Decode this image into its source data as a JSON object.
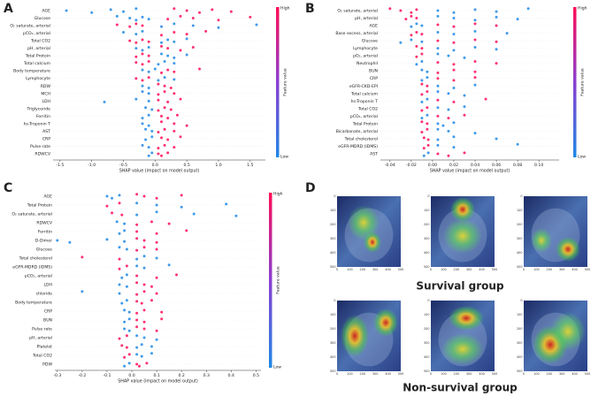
{
  "chart_data": [
    {
      "type": "beeswarm",
      "panel_label": "A",
      "features": [
        "AGE",
        "Glucose",
        "O₂ saturate, arterial",
        "pCO₂, arterial",
        "Total CO2",
        "pH, arterial",
        "Total Protein",
        "Total calcium",
        "Body temperature",
        "Lymphocyte",
        "RDW",
        "MCH",
        "LDH",
        "Triglyceride",
        "Ferritin",
        "hs-Troponin T",
        "AST",
        "CRP",
        "Pulse rate",
        "RDWCV"
      ],
      "high_values": [
        [
          0.3,
          0.5,
          0.7,
          0.9,
          1.2
        ],
        [
          0.2,
          0.4,
          0.6,
          1.0,
          1.5
        ],
        [
          -0.6,
          -0.4,
          -0.3,
          -0.2
        ],
        [
          0.1,
          0.3,
          0.5,
          0.8
        ],
        [
          -0.4,
          -0.3,
          -0.2,
          -0.1
        ],
        [
          0.1,
          0.2,
          0.4,
          0.6
        ],
        [
          -0.3,
          -0.2,
          -0.1
        ],
        [
          -0.3,
          -0.2,
          -0.1
        ],
        [
          0.1,
          0.2,
          0.3,
          0.7
        ],
        [
          -0.3,
          -0.2,
          -0.1
        ],
        [
          0.05,
          0.15,
          0.25
        ],
        [
          0.05,
          0.15,
          0.3
        ],
        [
          0.05,
          0.2,
          0.4
        ],
        [
          0.05,
          0.15,
          0.25
        ],
        [
          0.1,
          0.2,
          0.35
        ],
        [
          0.1,
          0.3,
          0.5
        ],
        [
          0.05,
          0.15,
          0.3
        ],
        [
          0.1,
          0.2,
          0.4
        ],
        [
          0.05,
          0.15,
          0.3
        ],
        [
          0.05,
          0.1,
          0.2
        ]
      ],
      "low_values": [
        [
          -1.4,
          -1.0,
          -0.7,
          -0.5,
          -0.3
        ],
        [
          -0.6,
          -0.4,
          -0.3,
          -0.2,
          -0.1
        ],
        [
          0.1,
          0.3,
          0.6,
          1.0,
          1.6
        ],
        [
          -0.5,
          -0.3,
          -0.2
        ],
        [
          0.1,
          0.2,
          0.3,
          0.5
        ],
        [
          -0.3,
          -0.2,
          -0.1
        ],
        [
          0.1,
          0.2,
          0.3,
          0.5
        ],
        [
          0.05,
          0.15,
          0.3
        ],
        [
          -0.2,
          -0.1,
          0
        ],
        [
          0.05,
          0.15,
          0.3
        ],
        [
          -0.2,
          -0.1
        ],
        [
          -0.2,
          -0.1
        ],
        [
          -0.8,
          -0.3,
          -0.1
        ],
        [
          -0.15,
          -0.05
        ],
        [
          -0.2,
          -0.1
        ],
        [
          -0.2,
          -0.1
        ],
        [
          -0.15,
          -0.05
        ],
        [
          -0.15,
          -0.05
        ],
        [
          -0.2,
          -0.1
        ],
        [
          -0.1,
          -0.05
        ]
      ],
      "xlim": [
        -1.61,
        1.74
      ],
      "xticks": [
        -1.5,
        {
          "value": -1,
          "label": "-1.0"
        },
        -0.5,
        {
          "value": 0,
          "label": "0.0"
        },
        0.5,
        {
          "value": 1,
          "label": "1.0"
        },
        1.5
      ],
      "xlabel": "SHAP value (impact on model output)",
      "colorbar": {
        "high_label": "High",
        "low_label": "Low",
        "title": "Feature value"
      },
      "colors": {
        "high": "#ff0d57",
        "low": "#1e88e5"
      }
    },
    {
      "type": "beeswarm",
      "panel_label": "B",
      "features": [
        "O₂ saturate, arterial",
        "pH, arterial",
        "AGE",
        "Base excess, arterial",
        "Glucose",
        "Lymphocyte",
        "pO₂, arterial",
        "Neutrophil",
        "BUN",
        "CRP",
        "eGFR-CKD-EPI",
        "Total calcium",
        "hs-Troponin T",
        "Total CO2",
        "pCO₂, arterial",
        "Total Protein",
        "Bicarbonate, arterial",
        "Total cholesterol",
        "eGFR-MDRD (IDMS)",
        "AST"
      ],
      "high_values": [
        [
          -0.04,
          -0.03,
          -0.02,
          -0.015
        ],
        [
          -0.025,
          -0.02,
          -0.015
        ],
        [
          0.005,
          0.02,
          0.04,
          0.06
        ],
        [
          -0.02,
          -0.015,
          -0.01
        ],
        [
          0.005,
          0.02,
          0.04,
          0.06
        ],
        [
          -0.015,
          -0.01
        ],
        [
          -0.015,
          -0.01
        ],
        [
          0.005,
          0.02,
          0.04,
          0.06
        ],
        [
          0.005,
          0.02,
          0.04
        ],
        [
          0.005,
          0.02,
          0.04
        ],
        [
          -0.01,
          -0.005
        ],
        [
          -0.01,
          -0.005
        ],
        [
          0.005,
          0.02,
          0.05
        ],
        [
          -0.01,
          -0.005
        ],
        [
          0.005,
          0.015,
          0.03
        ],
        [
          -0.01,
          -0.005
        ],
        [
          -0.01,
          -0.005
        ],
        [
          -0.008,
          -0.004
        ],
        [
          -0.008,
          -0.004
        ],
        [
          0.005,
          0.015,
          0.03
        ]
      ],
      "low_values": [
        [
          0.005,
          0.02,
          0.04,
          0.06,
          0.09
        ],
        [
          0.005,
          0.02,
          0.04,
          0.06,
          0.08
        ],
        [
          -0.02,
          -0.015,
          -0.01
        ],
        [
          0.005,
          0.02,
          0.04,
          0.07
        ],
        [
          -0.03,
          -0.02,
          -0.01
        ],
        [
          0.005,
          0.02,
          0.04,
          0.06
        ],
        [
          0.005,
          0.015,
          0.03
        ],
        [
          -0.015,
          -0.01
        ],
        [
          -0.01,
          -0.005
        ],
        [
          -0.01,
          -0.005
        ],
        [
          0.005,
          0.02,
          0.04
        ],
        [
          0.005,
          0.015,
          0.03
        ],
        [
          -0.01,
          -0.005
        ],
        [
          0.005,
          0.015,
          0.03
        ],
        [
          -0.01,
          -0.005
        ],
        [
          0.005,
          0.01,
          0.02
        ],
        [
          0.005,
          0.015,
          0.04
        ],
        [
          0.005,
          0.02,
          0.06
        ],
        [
          0.005,
          0.02,
          0.08
        ],
        [
          -0.008,
          -0.004
        ]
      ],
      "xlim": [
        -0.049,
        0.119
      ],
      "xticks": [
        -0.04,
        -0.02,
        {
          "value": 0,
          "label": "0.00"
        },
        0.02,
        0.04,
        0.06,
        0.08,
        {
          "value": 0.1,
          "label": "0.10"
        }
      ],
      "xlabel": "SHAP value (impact on model output)",
      "colorbar": {
        "high_label": "High",
        "low_label": "Low",
        "title": "Feature value"
      },
      "colors": {
        "high": "#ff0d57",
        "low": "#1e88e5"
      }
    },
    {
      "type": "beeswarm",
      "panel_label": "C",
      "features": [
        "AGE",
        "Total Protein",
        "O₂ saturate, arterial",
        "RDWCV",
        "Ferritin",
        "D-Dimer",
        "Glucose",
        "Total cholesterol",
        "eGFR-MDRD (IDMS)",
        "pCO₂, arterial",
        "LDH",
        "chloride",
        "Body temperature",
        "CRP",
        "BUN",
        "Pulse rate",
        "pH, arterial",
        "Platelet",
        "Total CO2",
        "PDW"
      ],
      "high_values": [
        [
          0.02,
          0.05,
          0.1,
          0.2
        ],
        [
          -0.1,
          -0.05
        ],
        [
          -0.08,
          -0.04
        ],
        [
          0.02,
          0.08,
          0.15
        ],
        [
          0.02,
          0.1,
          0.22
        ],
        [
          0.02,
          0.05,
          0.1
        ],
        [
          0.02,
          0.05,
          0.1
        ],
        [
          -0.2,
          -0.05
        ],
        [
          -0.05,
          -0.02
        ],
        [
          0.02,
          0.1,
          0.18
        ],
        [
          0.02,
          0.05,
          0.08
        ],
        [
          0.02,
          0.05,
          0.1
        ],
        [
          0.02,
          0.04,
          0.08
        ],
        [
          0.02,
          0.05,
          0.12
        ],
        [
          0.02,
          0.05,
          0.12
        ],
        [
          0.02,
          0.05,
          0.1
        ],
        [
          -0.05,
          -0.02
        ],
        [
          -0.04,
          -0.02
        ],
        [
          -0.03,
          -0.01
        ],
        [
          0.02,
          0.03,
          0.06
        ]
      ],
      "low_values": [
        [
          -0.1,
          -0.08,
          -0.05
        ],
        [
          0.02,
          0.1,
          0.2,
          0.38
        ],
        [
          0.02,
          0.1,
          0.25,
          0.42
        ],
        [
          -0.06,
          -0.03
        ],
        [
          -0.05,
          -0.03
        ],
        [
          -0.3,
          -0.25,
          -0.1,
          -0.03
        ],
        [
          -0.05,
          -0.02
        ],
        [
          0.02,
          0.05,
          0.1
        ],
        [
          0.02,
          0.05,
          0.15
        ],
        [
          -0.04,
          -0.02
        ],
        [
          -0.05,
          -0.02
        ],
        [
          -0.2,
          -0.05
        ],
        [
          -0.04,
          -0.02
        ],
        [
          -0.03,
          -0.01
        ],
        [
          -0.03,
          -0.01
        ],
        [
          -0.03,
          -0.01
        ],
        [
          0.02,
          0.05,
          0.1
        ],
        [
          0.02,
          0.04,
          0.08
        ],
        [
          0.02,
          0.04,
          0.08
        ],
        [
          -0.03,
          -0.01
        ]
      ],
      "xlim": [
        -0.31,
        0.52
      ],
      "xticks": [
        -0.3,
        -0.2,
        -0.1,
        {
          "value": 0,
          "label": "0.0"
        },
        0.1,
        0.2,
        0.3,
        0.4,
        0.5
      ],
      "xlabel": "SHAP value (impact on model output)",
      "colorbar": {
        "high_label": "High",
        "low_label": "Low",
        "title": "Feature value"
      },
      "colors": {
        "high": "#ff0d57",
        "low": "#1e88e5"
      }
    }
  ],
  "panel_d": {
    "label": "D",
    "groups": [
      "Survival group",
      "Non-survival group"
    ],
    "image_ticks": [
      0,
      100,
      200,
      300,
      400,
      500
    ]
  }
}
